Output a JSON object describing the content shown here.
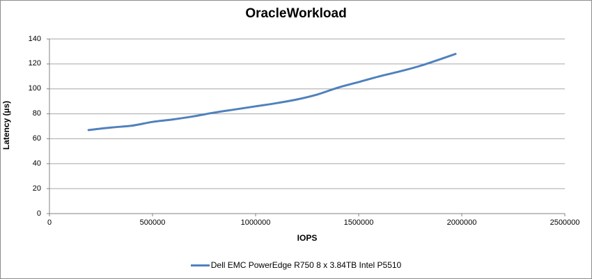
{
  "chart": {
    "title": "OracleWorkload",
    "colors": {
      "series": "#4F81BD",
      "gridline": "#A6A6A6",
      "axis": "#808080",
      "border": "#8C8C8C",
      "background": "#FFFFFF",
      "text": "#000000"
    }
  },
  "chart_data": {
    "type": "line",
    "title": "OracleWorkload",
    "xlabel": "IOPS",
    "ylabel": "Latency (µs)",
    "xlim": [
      0,
      2500000
    ],
    "ylim": [
      0,
      140
    ],
    "x_ticks": [
      0,
      500000,
      1000000,
      1500000,
      2000000,
      2500000
    ],
    "y_ticks": [
      0,
      20,
      40,
      60,
      80,
      100,
      120,
      140
    ],
    "grid": "horizontal",
    "legend_position": "bottom",
    "series": [
      {
        "name": "Dell EMC PowerEdge R750 8 x 3.84TB Intel P5510",
        "color": "#4F81BD",
        "marker": "none",
        "smooth": true,
        "points": [
          [
            190000,
            67
          ],
          [
            300000,
            69
          ],
          [
            400000,
            70.5
          ],
          [
            500000,
            73.5
          ],
          [
            600000,
            75.5
          ],
          [
            700000,
            78
          ],
          [
            800000,
            81
          ],
          [
            900000,
            83.5
          ],
          [
            1000000,
            86
          ],
          [
            1100000,
            88.5
          ],
          [
            1200000,
            91.5
          ],
          [
            1300000,
            95.5
          ],
          [
            1400000,
            101
          ],
          [
            1500000,
            105.5
          ],
          [
            1600000,
            110
          ],
          [
            1700000,
            114
          ],
          [
            1800000,
            118.5
          ],
          [
            1900000,
            124
          ],
          [
            1970000,
            128
          ]
        ]
      }
    ]
  }
}
